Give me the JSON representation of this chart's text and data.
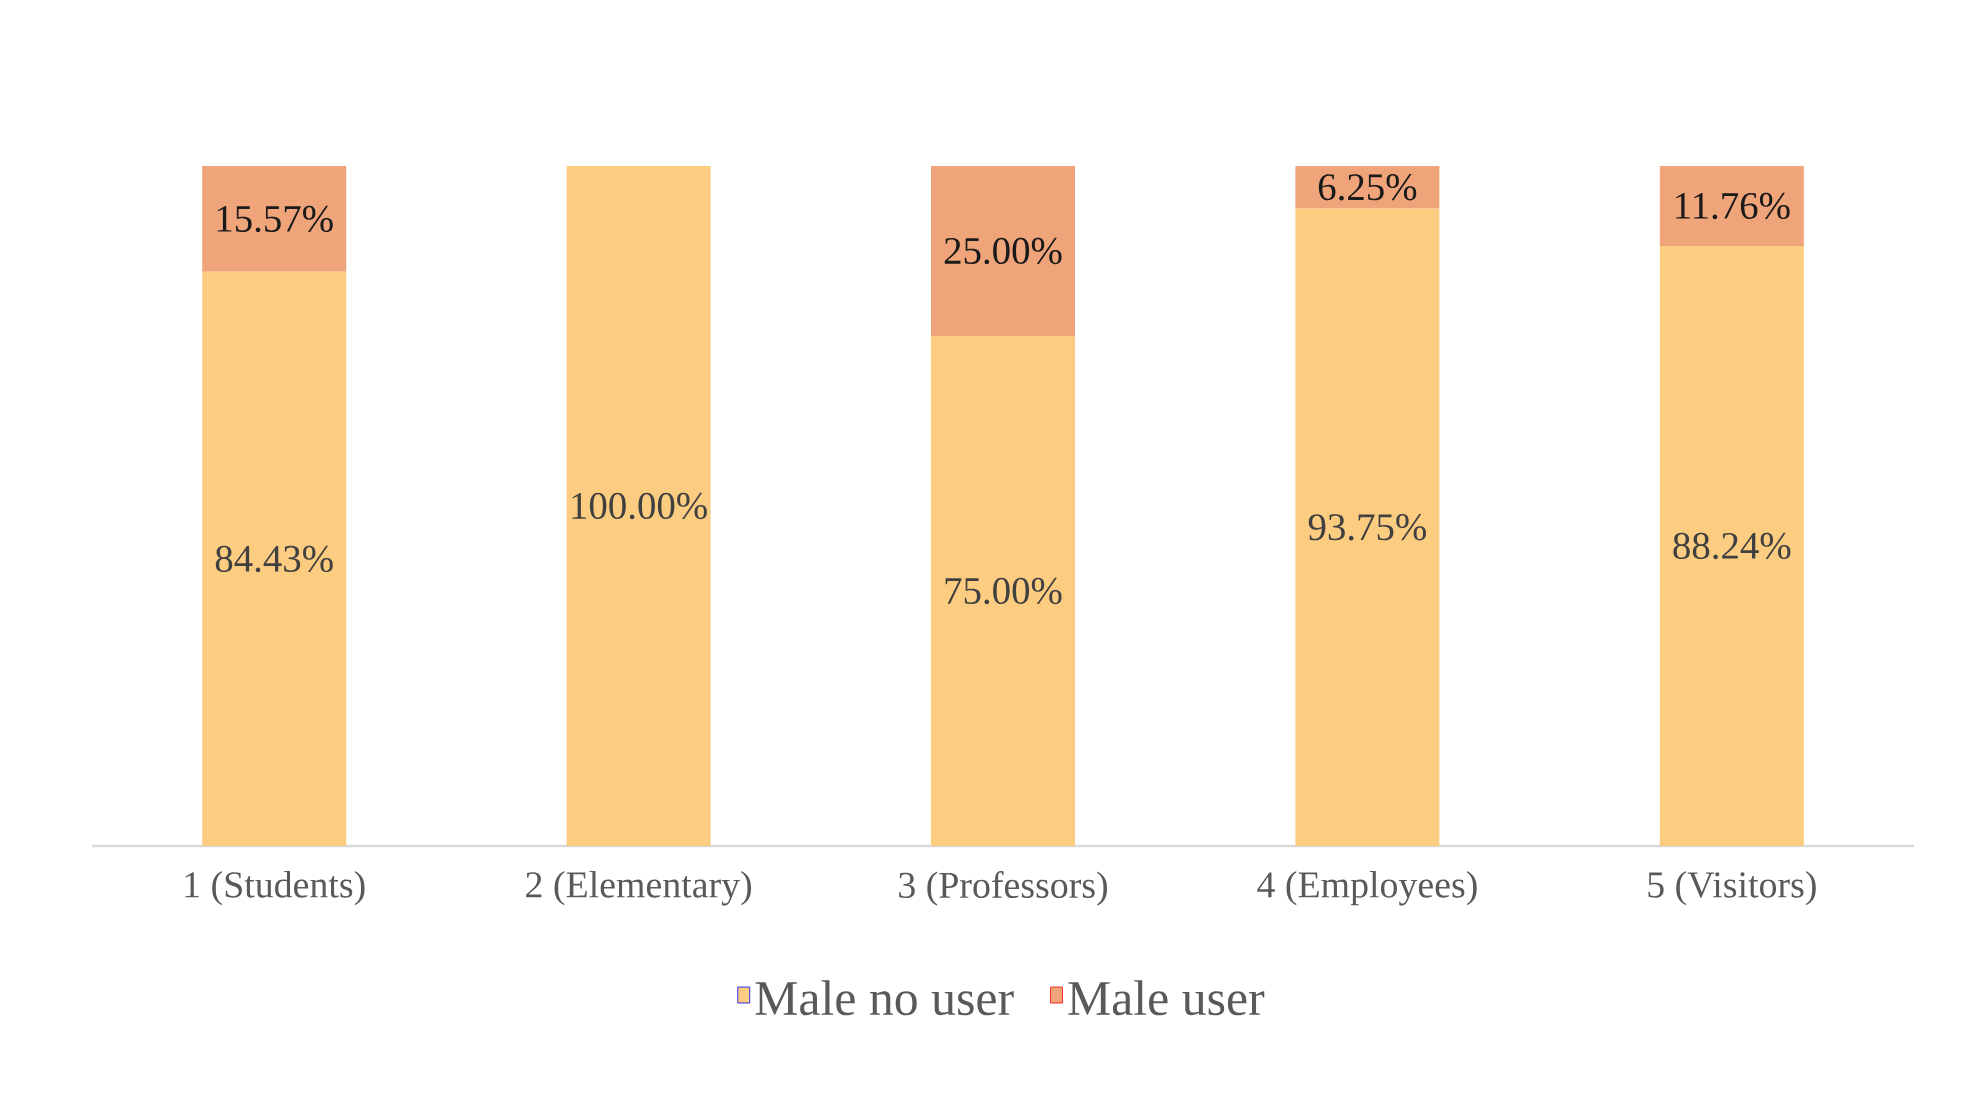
{
  "chart_data": {
    "type": "bar",
    "stacked": true,
    "categories": [
      "1 (Students)",
      "2 (Elementary)",
      "3 (Professors)",
      "4 (Employees)",
      "5 (Visitors)"
    ],
    "series": [
      {
        "name": "Male no user",
        "color": "#fccc80",
        "values": [
          84.43,
          100,
          75,
          93.75,
          88.24
        ],
        "value_labels": [
          "84.43%",
          "100.00%",
          "75.00%",
          "93.75%",
          "88.24%"
        ]
      },
      {
        "name": "Male user",
        "color": "#f0a47a",
        "values": [
          15.57,
          0,
          25,
          6.25,
          11.76
        ],
        "value_labels": [
          "15.57%",
          null,
          "25.00%",
          "6.25%",
          "11.76%"
        ]
      }
    ],
    "ylim": [
      0,
      100
    ],
    "legend": "bottom",
    "tick_labels": "x"
  }
}
